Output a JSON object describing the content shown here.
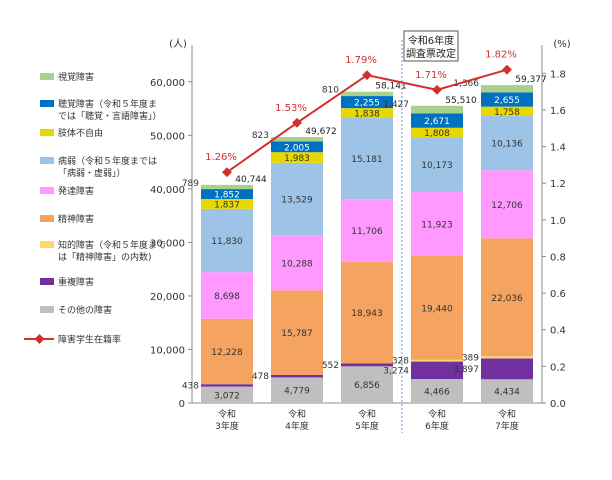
{
  "chart_data": {
    "type": "bar",
    "categories": [
      {
        "line1": "令和",
        "line2": "3年度"
      },
      {
        "line1": "令和",
        "line2": "4年度"
      },
      {
        "line1": "令和",
        "line2": "5年度"
      },
      {
        "line1": "令和",
        "line2": "6年度"
      },
      {
        "line1": "令和",
        "line2": "7年度"
      }
    ],
    "y_left": {
      "unit": "(人)",
      "min": 0,
      "max": 65000,
      "ticks": [
        0,
        10000,
        20000,
        30000,
        40000,
        50000,
        60000
      ],
      "tick_labels": [
        "0",
        "10,000",
        "20,000",
        "30,000",
        "40,000",
        "50,000",
        "60,000"
      ]
    },
    "y_right": {
      "unit": "(%)",
      "min": 0,
      "max": 1.9,
      "ticks": [
        0,
        0.2,
        0.4,
        0.6,
        0.8,
        1.0,
        1.2,
        1.4,
        1.6,
        1.8
      ],
      "tick_labels": [
        "0.0",
        "0.2",
        "0.4",
        "0.6",
        "0.8",
        "1.0",
        "1.2",
        "1.4",
        "1.6",
        "1.8"
      ]
    },
    "series": [
      {
        "name": "その他の障害",
        "color": "#bfbfbf",
        "text_color": "#333333",
        "values": [
          3072,
          4779,
          6856,
          4466,
          4434
        ],
        "labels": [
          "3,072",
          "4,779",
          "6,856",
          "4,466",
          "4,434"
        ]
      },
      {
        "name": "重複障害",
        "color": "#7030a0",
        "text_color": "#333333",
        "values": [
          438,
          478,
          552,
          3274,
          3897
        ],
        "labels": [
          "438",
          "478",
          "552",
          "3,274",
          "3,897"
        ]
      },
      {
        "name": "知的障害（令和５年度までは「精神障害」の内数)",
        "color": "#ffd966",
        "text_color": "#333333",
        "values": [
          0,
          0,
          0,
          328,
          389
        ],
        "labels": [
          "",
          "",
          "",
          "328",
          "389"
        ]
      },
      {
        "name": "精神障害",
        "color": "#f4a460",
        "text_color": "#333333",
        "values": [
          12228,
          15787,
          18943,
          19440,
          22036
        ],
        "labels": [
          "12,228",
          "15,787",
          "18,943",
          "19,440",
          "22,036"
        ]
      },
      {
        "name": "発達障害",
        "color": "#ff99ff",
        "text_color": "#333333",
        "values": [
          8698,
          10288,
          11706,
          11923,
          12706
        ],
        "labels": [
          "8,698",
          "10,288",
          "11,706",
          "11,923",
          "12,706"
        ]
      },
      {
        "name": "病弱（令和５年度までは「病弱・虚弱」）",
        "color": "#9dc3e6",
        "text_color": "#333333",
        "values": [
          11830,
          13529,
          15181,
          10173,
          10136
        ],
        "labels": [
          "11,830",
          "13,529",
          "15,181",
          "10,173",
          "10,136"
        ]
      },
      {
        "name": "肢体不自由",
        "color": "#e6d800",
        "text_color": "#333333",
        "values": [
          1837,
          1983,
          1838,
          1808,
          1758
        ],
        "labels": [
          "1,837",
          "1,983",
          "1,838",
          "1,808",
          "1,758"
        ]
      },
      {
        "name": "聴覚障害（令和５年度までは「聴覚・言語障害」）",
        "color": "#0070c0",
        "text_color": "#ffffff",
        "values": [
          1852,
          2005,
          2255,
          2671,
          2655
        ],
        "labels": [
          "1,852",
          "2,005",
          "2,255",
          "2,671",
          "2,655"
        ]
      },
      {
        "name": "視覚障害",
        "color": "#a9d18e",
        "text_color": "#333333",
        "values": [
          789,
          823,
          810,
          1427,
          1366
        ],
        "labels": [
          "789",
          "823",
          "810",
          "1,427",
          "1,366"
        ]
      }
    ],
    "totals": [
      40744,
      49672,
      58141,
      55510,
      59377
    ],
    "total_labels": [
      "40,744",
      "49,672",
      "58,141",
      "55,510",
      "59,377"
    ],
    "rate": {
      "name": "障害学生在籍率",
      "color": "#d32f2f",
      "values": [
        1.26,
        1.53,
        1.79,
        1.71,
        1.82
      ],
      "labels": [
        "1.26%",
        "1.53%",
        "1.79%",
        "1.71%",
        "1.82%"
      ]
    },
    "annotation": {
      "line1": "令和6年度",
      "line2": "調査票改定"
    },
    "legend": [
      {
        "lines": [
          "視覚障害"
        ],
        "color": "#a9d18e"
      },
      {
        "lines": [
          "聴覚障害（令和５年度ま",
          "では「聴覚・言語障害」）"
        ],
        "color": "#0070c0"
      },
      {
        "lines": [
          "肢体不自由"
        ],
        "color": "#e6d800"
      },
      {
        "lines": [
          "病弱（令和５年度までは",
          "「病弱・虚弱」）"
        ],
        "color": "#9dc3e6"
      },
      {
        "lines": [
          "発達障害"
        ],
        "color": "#ff99ff"
      },
      {
        "lines": [
          "精神障害"
        ],
        "color": "#f4a460"
      },
      {
        "lines": [
          "知的障害（令和５年度まで",
          "は「精神障害」の内数)"
        ],
        "color": "#ffd966"
      },
      {
        "lines": [
          "重複障害"
        ],
        "color": "#7030a0"
      },
      {
        "lines": [
          "その他の障害"
        ],
        "color": "#bfbfbf"
      },
      {
        "lines": [
          "障害学生在籍率"
        ],
        "color": "#d32f2f",
        "kind": "line"
      }
    ]
  }
}
